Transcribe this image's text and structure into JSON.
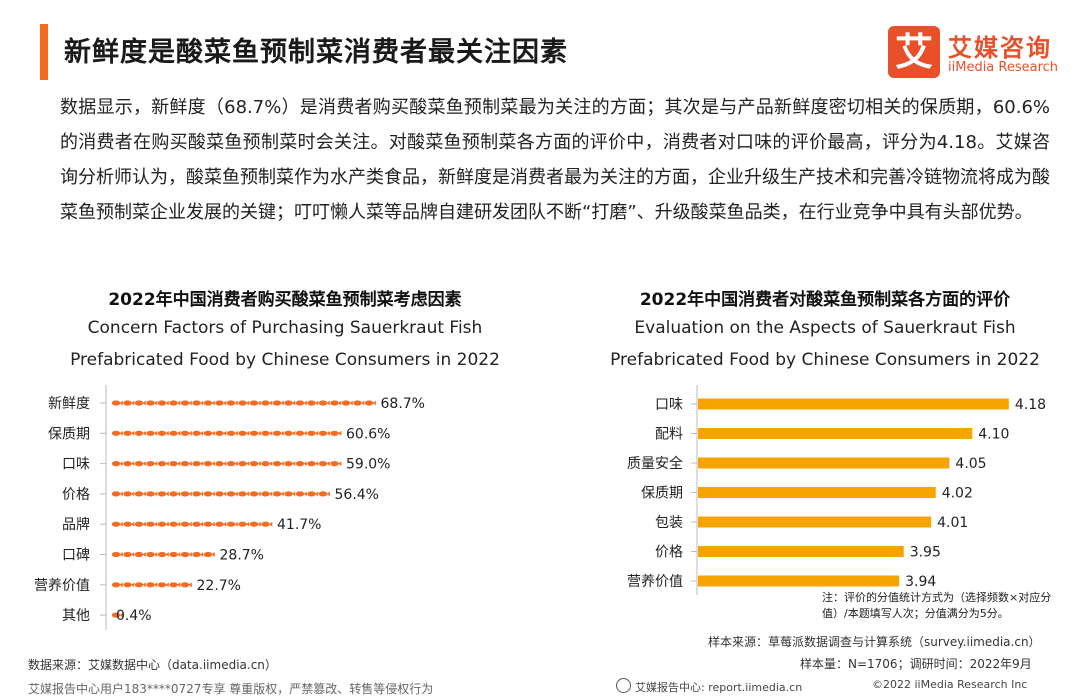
{
  "header": {
    "title": "新鲜度是酸菜鱼预制菜消费者最关注因素",
    "logo_mark": "艾",
    "logo_cn": "艾媒咨询",
    "logo_en": "iiMedia Research"
  },
  "intro": "数据显示，新鲜度（68.7%）是消费者购买酸菜鱼预制菜最为关注的方面；其次是与产品新鲜度密切相关的保质期，60.6%的消费者在购买酸菜鱼预制菜时会关注。对酸菜鱼预制菜各方面的评价中，消费者对口味的评价最高，评分为4.18。艾媒咨询分析师认为，酸菜鱼预制菜作为水产类食品，新鲜度是消费者最为关注的方面，企业升级生产技术和完善冷链物流将成为酸菜鱼预制菜企业发展的关键；叮叮懒人菜等品牌自建研发团队不断“打磨”、升级酸菜鱼品类，在行业竞争中具有头部优势。",
  "chart_data": [
    {
      "type": "bar",
      "orientation": "horizontal",
      "title": "2022年中国消费者购买酸菜鱼预制菜考虑因素",
      "subtitle_line1": "Concern Factors of Purchasing Sauerkraut Fish",
      "subtitle_line2": "Prefabricated Food by Chinese Consumers in 2022",
      "categories": [
        "新鲜度",
        "保质期",
        "口味",
        "价格",
        "品牌",
        "口碑",
        "营养价值",
        "其他"
      ],
      "values": [
        68.7,
        60.6,
        59.0,
        56.4,
        41.7,
        28.7,
        22.7,
        0.4
      ],
      "labels": [
        "68.7%",
        "60.6%",
        "59.0%",
        "56.4%",
        "41.7%",
        "28.7%",
        "22.7%",
        "0.4%"
      ],
      "unit": "%",
      "xlim": [
        0,
        100
      ],
      "color": "#f26b21"
    },
    {
      "type": "bar",
      "orientation": "horizontal",
      "title": "2022年中国消费者对酸菜鱼预制菜各方面的评价",
      "subtitle_line1": "Evaluation on the Aspects of Sauerkraut Fish",
      "subtitle_line2": "Prefabricated Food by Chinese Consumers in 2022",
      "categories": [
        "口味",
        "配料",
        "质量安全",
        "保质期",
        "包装",
        "价格",
        "营养价值"
      ],
      "values": [
        4.18,
        4.1,
        4.05,
        4.02,
        4.01,
        3.95,
        3.94
      ],
      "labels": [
        "4.18",
        "4.10",
        "4.05",
        "4.02",
        "4.01",
        "3.95",
        "3.94"
      ],
      "xlim": [
        3.5,
        4.2
      ],
      "color": "#f7a400"
    }
  ],
  "notes": {
    "note": "注：评价的分值统计方式为（选择频数×对应分值）/本题填写人次；分值满分为5分。",
    "sample_source": "样本来源：草莓派数据调查与计算系统（survey.iimedia.cn）",
    "sample_size": "样本量：N=1706；调研时间：2022年9月",
    "data_source": "数据来源：艾媒数据中心（data.iimedia.cn）"
  },
  "footer": {
    "copyright_notice": "艾媒报告中心用户183****0727专享 尊重版权，严禁篡改、转售等侵权行为",
    "report_center": "艾媒报告中心: report.iimedia.cn",
    "copyright": "©2022  iiMedia Research Inc"
  }
}
